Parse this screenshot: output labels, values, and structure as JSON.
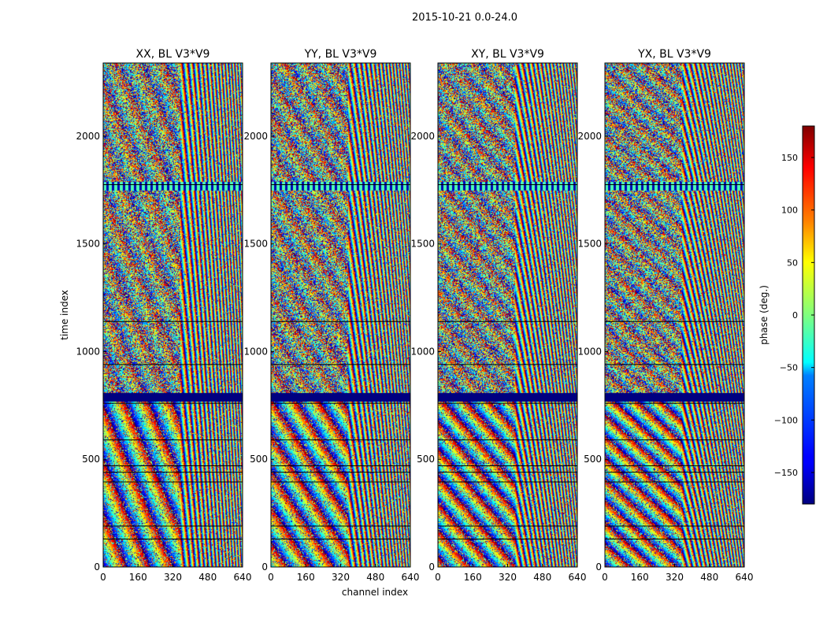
{
  "figure": {
    "suptitle": "2015-10-21 0.0-24.0"
  },
  "chart_data": {
    "type": "heatmap",
    "suptitle": "2015-10-21 0.0-24.0",
    "xlabel": "channel index",
    "ylabel": "time index",
    "xlim": [
      0,
      640
    ],
    "ylim": [
      0,
      2340
    ],
    "xticks": [
      0,
      160,
      320,
      480,
      640
    ],
    "yticks": [
      0,
      500,
      1000,
      1500,
      2000
    ],
    "colormap": "jet",
    "colorbar": {
      "label": "phase (deg.)",
      "range": [
        -180,
        180
      ],
      "ticks": [
        150,
        100,
        50,
        0,
        -50,
        -100,
        -150
      ],
      "tick_labels": [
        "150",
        "100",
        "50",
        "0",
        "−50",
        "−100",
        "−150"
      ]
    },
    "panels": [
      {
        "title": "XX, BL V3*V9",
        "polarization": "XX"
      },
      {
        "title": "YY, BL V3*V9",
        "polarization": "YY"
      },
      {
        "title": "XY, BL V3*V9",
        "polarization": "XY"
      },
      {
        "title": "YX, BL V3*V9",
        "polarization": "YX"
      }
    ],
    "flagged_time_bands": [
      [
        770,
        810
      ],
      [
        1750,
        1790
      ]
    ],
    "flag_lines_time": [
      130,
      190,
      395,
      440,
      470,
      590,
      760,
      940,
      1140,
      1775
    ]
  },
  "colors": {
    "jet_dark_blue": "#00007f",
    "jet_blue": "#0000ff",
    "jet_cyan": "#00ffff",
    "jet_yellow": "#ffff00",
    "jet_red": "#ff0000",
    "jet_dark_red": "#7f0000"
  }
}
